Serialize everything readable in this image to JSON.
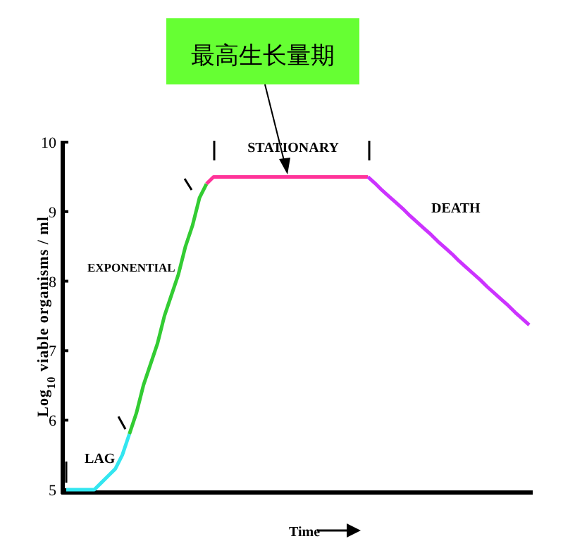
{
  "chart_data": {
    "type": "line",
    "ylabel": "Log$_{10}$ viable organisms / ml",
    "xlabel": "Time",
    "annotations": [
      "最高生长量期",
      "LAG",
      "EXPONENTIAL",
      "STATIONARY",
      "DEATH"
    ],
    "categories": [
      null,
      null,
      null,
      null,
      null,
      null,
      null,
      null,
      null,
      null,
      null,
      null,
      null,
      null,
      null,
      null,
      null,
      null,
      null,
      null,
      null,
      null,
      null,
      null,
      null,
      null,
      null,
      null,
      null,
      null,
      null,
      null,
      null,
      null,
      null,
      null,
      null,
      null,
      null,
      null,
      null,
      null,
      null,
      null,
      null,
      null,
      null,
      null,
      null,
      null,
      null,
      null,
      null,
      null,
      null,
      null,
      null,
      null,
      null,
      null,
      null,
      null,
      null,
      null,
      null,
      null,
      null
    ],
    "series": [
      {
        "color": "#33e6f0",
        "values": [
          5.0,
          5.0,
          5.0,
          5.0,
          5.0,
          5.1,
          5.2,
          5.3,
          5.5,
          5.8,
          null,
          null,
          null,
          null,
          null,
          null,
          null,
          null,
          null,
          null,
          null,
          null,
          null,
          null,
          null,
          null,
          null,
          null,
          null,
          null,
          null,
          null,
          null,
          null,
          null,
          null,
          null,
          null,
          null,
          null,
          null,
          null,
          null,
          null,
          null,
          null,
          null,
          null,
          null,
          null,
          null,
          null,
          null,
          null,
          null,
          null,
          null,
          null,
          null,
          null,
          null,
          null,
          null,
          null,
          null,
          null,
          null
        ]
      },
      {
        "color": "#33cc33",
        "values": [
          null,
          null,
          null,
          null,
          null,
          null,
          null,
          null,
          null,
          5.8,
          6.1,
          6.5,
          6.8,
          7.1,
          7.5,
          7.8,
          8.1,
          8.5,
          8.8,
          9.2,
          9.4,
          null,
          null,
          null,
          null,
          null,
          null,
          null,
          null,
          null,
          null,
          null,
          null,
          null,
          null,
          null,
          null,
          null,
          null,
          null,
          null,
          null,
          null,
          null,
          null,
          null,
          null,
          null,
          null,
          null,
          null,
          null,
          null,
          null,
          null,
          null,
          null,
          null,
          null,
          null,
          null,
          null,
          null,
          null,
          null,
          null,
          null
        ]
      },
      {
        "color": "#ff3399",
        "values": [
          null,
          null,
          null,
          null,
          null,
          null,
          null,
          null,
          null,
          null,
          null,
          null,
          null,
          null,
          null,
          null,
          null,
          null,
          null,
          null,
          9.4,
          9.5,
          9.5,
          9.5,
          9.5,
          9.5,
          9.5,
          9.5,
          9.5,
          9.5,
          9.5,
          9.5,
          9.5,
          9.5,
          9.5,
          9.5,
          9.5,
          9.5,
          9.5,
          9.5,
          9.5,
          9.5,
          9.5,
          9.5,
          null,
          null,
          null,
          null,
          null,
          null,
          null,
          null,
          null,
          null,
          null,
          null,
          null,
          null,
          null,
          null,
          null,
          null,
          null,
          null,
          null,
          null,
          null
        ]
      },
      {
        "color": "#cc33ff",
        "values": [
          null,
          null,
          null,
          null,
          null,
          null,
          null,
          null,
          null,
          null,
          null,
          null,
          null,
          null,
          null,
          null,
          null,
          null,
          null,
          null,
          null,
          null,
          null,
          null,
          null,
          null,
          null,
          null,
          null,
          null,
          null,
          null,
          null,
          null,
          null,
          null,
          null,
          null,
          null,
          null,
          null,
          null,
          null,
          9.5,
          9.41,
          9.31,
          9.22,
          9.13,
          9.04,
          8.94,
          8.85,
          8.76,
          8.67,
          8.57,
          8.48,
          8.39,
          8.29,
          8.2,
          8.11,
          8.02,
          7.92,
          7.83,
          7.74,
          7.65,
          7.55,
          7.46,
          7.37
        ]
      }
    ],
    "ylim": [
      5,
      10
    ],
    "yticks": [
      5,
      6,
      7,
      8,
      9,
      10
    ],
    "tick_labels": "y",
    "marker": "none",
    "line_style": "solid",
    "grid": false
  }
}
